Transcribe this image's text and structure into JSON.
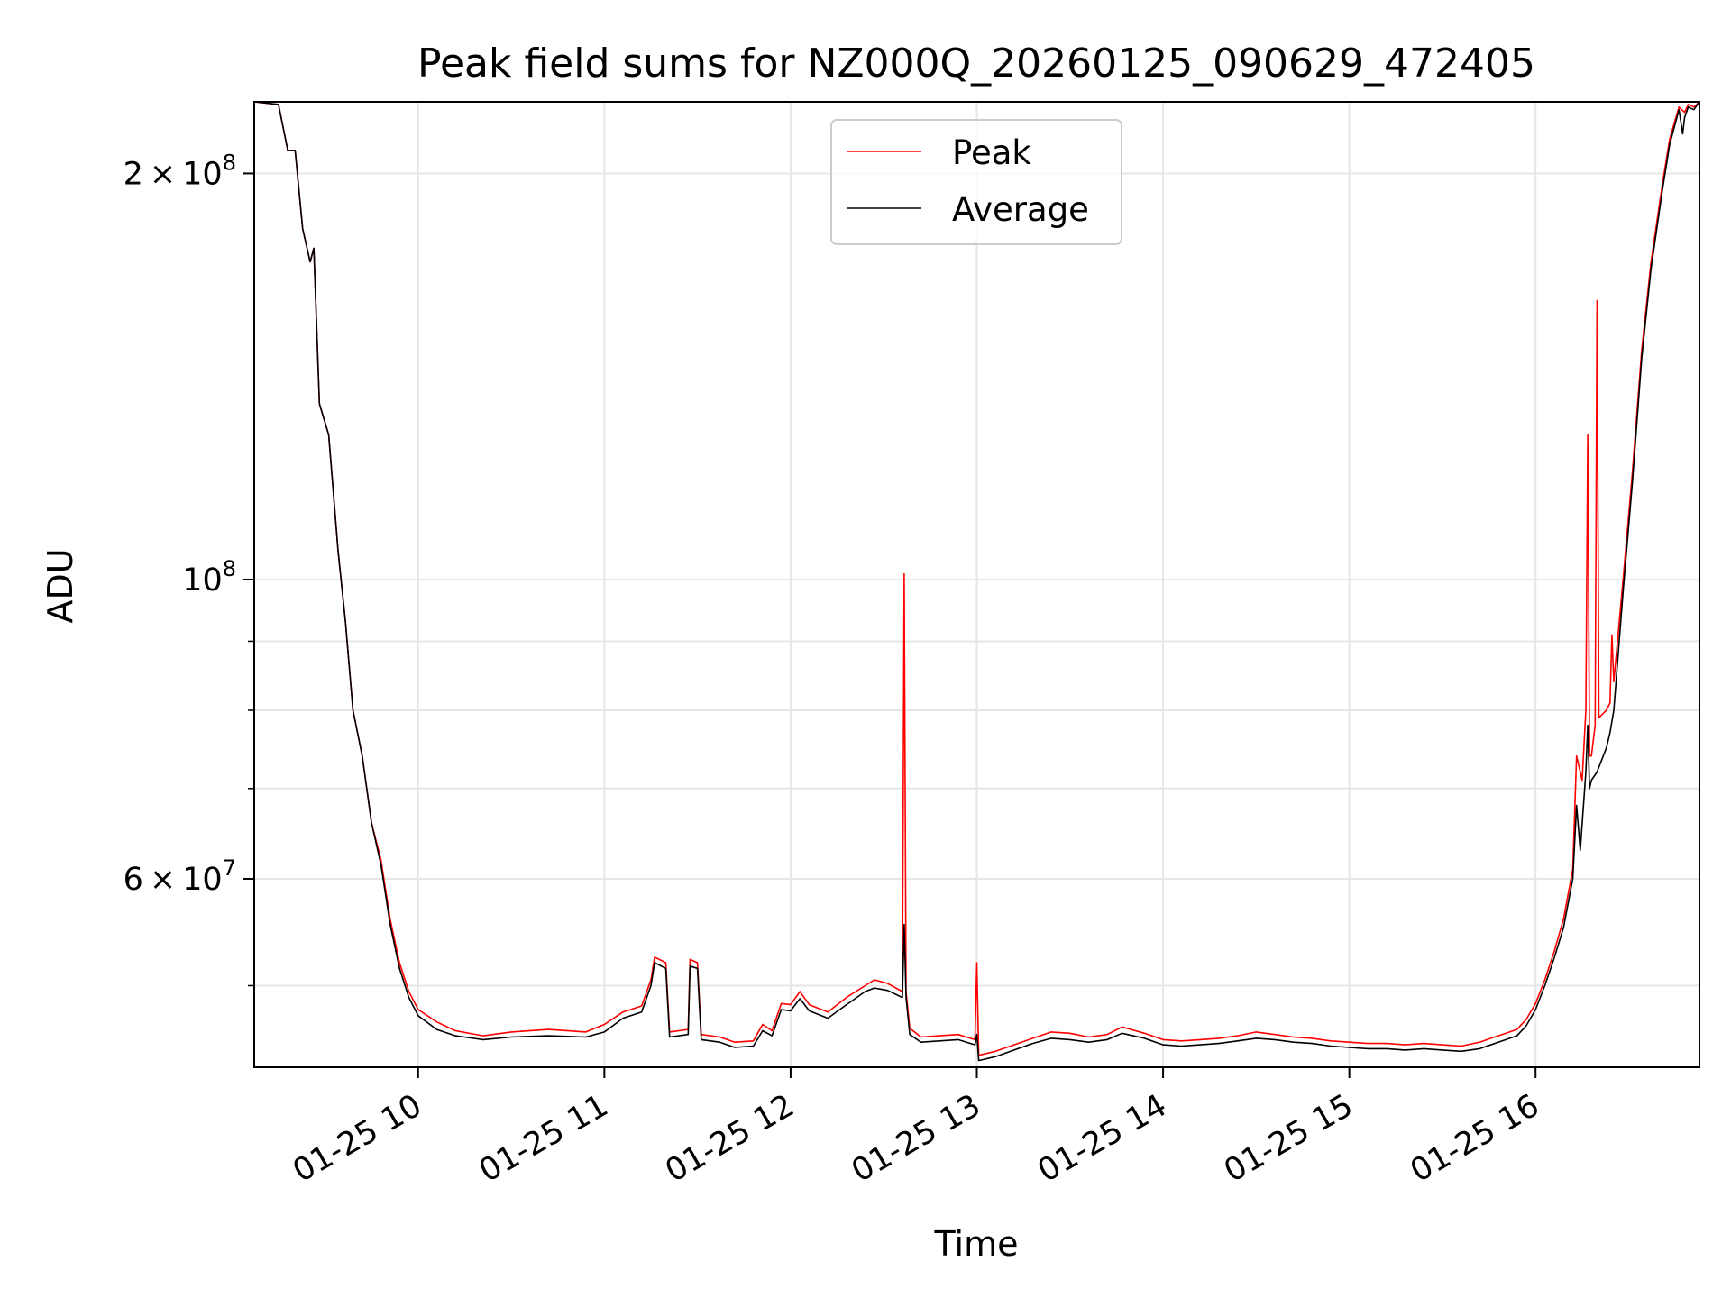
{
  "chart_data": {
    "type": "line",
    "title": "Peak field sums for NZ000Q_20260125_090629_472405",
    "xlabel": "Time",
    "ylabel": "ADU",
    "yscale": "log",
    "ylim": [
      43500000,
      226000000
    ],
    "xlim_hours": [
      9.12,
      16.88
    ],
    "grid": true,
    "legend_position": "upper center",
    "x_ticks": [
      {
        "value": 10,
        "label": "01-25 10"
      },
      {
        "value": 11,
        "label": "01-25 11"
      },
      {
        "value": 12,
        "label": "01-25 12"
      },
      {
        "value": 13,
        "label": "01-25 13"
      },
      {
        "value": 14,
        "label": "01-25 14"
      },
      {
        "value": 15,
        "label": "01-25 15"
      },
      {
        "value": 16,
        "label": "01-25 16"
      }
    ],
    "y_major_ticks": [
      {
        "value": 60000000,
        "mantissa": "6",
        "base": "10",
        "exponent": "7"
      },
      {
        "value": 100000000,
        "mantissa": "",
        "base": "10",
        "exponent": "8"
      },
      {
        "value": 200000000,
        "mantissa": "2",
        "base": "10",
        "exponent": "8"
      }
    ],
    "y_minor_ticks": [
      50000000,
      70000000,
      80000000,
      90000000
    ],
    "series": [
      {
        "name": "Peak",
        "color": "#ff0000",
        "points": [
          [
            9.12,
            226000000
          ],
          [
            9.25,
            225000000
          ],
          [
            9.3,
            208000000
          ],
          [
            9.34,
            208000000
          ],
          [
            9.38,
            182000000
          ],
          [
            9.42,
            172000000
          ],
          [
            9.44,
            176000000
          ],
          [
            9.47,
            135000000
          ],
          [
            9.52,
            128000000
          ],
          [
            9.57,
            105000000
          ],
          [
            9.61,
            93000000
          ],
          [
            9.65,
            80000000
          ],
          [
            9.7,
            74000000
          ],
          [
            9.75,
            66000000
          ],
          [
            9.8,
            62000000
          ],
          [
            9.85,
            56000000
          ],
          [
            9.9,
            52000000
          ],
          [
            9.95,
            49500000
          ],
          [
            10,
            48000000
          ],
          [
            10.1,
            47000000
          ],
          [
            10.2,
            46300000
          ],
          [
            10.35,
            45900000
          ],
          [
            10.5,
            46200000
          ],
          [
            10.7,
            46400000
          ],
          [
            10.9,
            46200000
          ],
          [
            11.0,
            46800000
          ],
          [
            11.1,
            47800000
          ],
          [
            11.2,
            48300000
          ],
          [
            11.25,
            50500000
          ],
          [
            11.27,
            52500000
          ],
          [
            11.33,
            52000000
          ],
          [
            11.35,
            46200000
          ],
          [
            11.45,
            46400000
          ],
          [
            11.46,
            52300000
          ],
          [
            11.5,
            52000000
          ],
          [
            11.52,
            46000000
          ],
          [
            11.62,
            45800000
          ],
          [
            11.7,
            45400000
          ],
          [
            11.8,
            45500000
          ],
          [
            11.85,
            46800000
          ],
          [
            11.9,
            46300000
          ],
          [
            11.95,
            48500000
          ],
          [
            12.0,
            48400000
          ],
          [
            12.05,
            49500000
          ],
          [
            12.1,
            48400000
          ],
          [
            12.2,
            47800000
          ],
          [
            12.3,
            49000000
          ],
          [
            12.4,
            50000000
          ],
          [
            12.45,
            50500000
          ],
          [
            12.52,
            50200000
          ],
          [
            12.6,
            49500000
          ],
          [
            12.61,
            101000000
          ],
          [
            12.62,
            49500000
          ],
          [
            12.64,
            46500000
          ],
          [
            12.7,
            45800000
          ],
          [
            12.8,
            45900000
          ],
          [
            12.9,
            46000000
          ],
          [
            12.99,
            45600000
          ],
          [
            13.0,
            52000000
          ],
          [
            13.01,
            44400000
          ],
          [
            13.1,
            44700000
          ],
          [
            13.2,
            45200000
          ],
          [
            13.3,
            45700000
          ],
          [
            13.4,
            46200000
          ],
          [
            13.5,
            46100000
          ],
          [
            13.6,
            45800000
          ],
          [
            13.7,
            46000000
          ],
          [
            13.78,
            46600000
          ],
          [
            13.9,
            46100000
          ],
          [
            14.0,
            45600000
          ],
          [
            14.1,
            45500000
          ],
          [
            14.2,
            45600000
          ],
          [
            14.3,
            45700000
          ],
          [
            14.4,
            45900000
          ],
          [
            14.5,
            46200000
          ],
          [
            14.6,
            46000000
          ],
          [
            14.7,
            45800000
          ],
          [
            14.8,
            45700000
          ],
          [
            14.9,
            45500000
          ],
          [
            15.0,
            45400000
          ],
          [
            15.1,
            45300000
          ],
          [
            15.2,
            45300000
          ],
          [
            15.3,
            45200000
          ],
          [
            15.4,
            45300000
          ],
          [
            15.5,
            45200000
          ],
          [
            15.6,
            45100000
          ],
          [
            15.7,
            45400000
          ],
          [
            15.8,
            45900000
          ],
          [
            15.9,
            46400000
          ],
          [
            15.95,
            47200000
          ],
          [
            16.0,
            48500000
          ],
          [
            16.05,
            50500000
          ],
          [
            16.1,
            53000000
          ],
          [
            16.15,
            56000000
          ],
          [
            16.2,
            61000000
          ],
          [
            16.22,
            74000000
          ],
          [
            16.25,
            71000000
          ],
          [
            16.27,
            80000000
          ],
          [
            16.28,
            128000000
          ],
          [
            16.29,
            74000000
          ],
          [
            16.3,
            74000000
          ],
          [
            16.32,
            78000000
          ],
          [
            16.33,
            161000000
          ],
          [
            16.34,
            79000000
          ],
          [
            16.38,
            80000000
          ],
          [
            16.4,
            81000000
          ],
          [
            16.41,
            91000000
          ],
          [
            16.42,
            84000000
          ],
          [
            16.47,
            100000000
          ],
          [
            16.52,
            120000000
          ],
          [
            16.57,
            148000000
          ],
          [
            16.62,
            172000000
          ],
          [
            16.68,
            196000000
          ],
          [
            16.72,
            212000000
          ],
          [
            16.77,
            224000000
          ],
          [
            16.8,
            222000000
          ],
          [
            16.82,
            225000000
          ],
          [
            16.85,
            224000000
          ],
          [
            16.88,
            226000000
          ]
        ]
      },
      {
        "name": "Average",
        "color": "#000000",
        "points": [
          [
            9.12,
            226000000
          ],
          [
            9.25,
            225000000
          ],
          [
            9.3,
            208000000
          ],
          [
            9.34,
            208000000
          ],
          [
            9.38,
            182000000
          ],
          [
            9.42,
            172000000
          ],
          [
            9.44,
            176000000
          ],
          [
            9.47,
            135000000
          ],
          [
            9.52,
            128000000
          ],
          [
            9.57,
            105000000
          ],
          [
            9.61,
            93000000
          ],
          [
            9.65,
            80000000
          ],
          [
            9.7,
            74000000
          ],
          [
            9.75,
            66000000
          ],
          [
            9.8,
            61500000
          ],
          [
            9.85,
            55500000
          ],
          [
            9.9,
            51500000
          ],
          [
            9.95,
            49000000
          ],
          [
            10,
            47500000
          ],
          [
            10.1,
            46400000
          ],
          [
            10.2,
            45900000
          ],
          [
            10.35,
            45600000
          ],
          [
            10.5,
            45800000
          ],
          [
            10.7,
            45900000
          ],
          [
            10.9,
            45800000
          ],
          [
            11.0,
            46200000
          ],
          [
            11.1,
            47300000
          ],
          [
            11.2,
            47800000
          ],
          [
            11.25,
            50000000
          ],
          [
            11.27,
            52000000
          ],
          [
            11.33,
            51500000
          ],
          [
            11.35,
            45800000
          ],
          [
            11.45,
            46000000
          ],
          [
            11.46,
            51700000
          ],
          [
            11.5,
            51500000
          ],
          [
            11.52,
            45600000
          ],
          [
            11.62,
            45400000
          ],
          [
            11.7,
            45000000
          ],
          [
            11.8,
            45100000
          ],
          [
            11.85,
            46300000
          ],
          [
            11.9,
            45900000
          ],
          [
            11.95,
            48000000
          ],
          [
            12.0,
            47900000
          ],
          [
            12.05,
            48900000
          ],
          [
            12.1,
            47900000
          ],
          [
            12.2,
            47300000
          ],
          [
            12.3,
            48400000
          ],
          [
            12.4,
            49500000
          ],
          [
            12.45,
            49800000
          ],
          [
            12.52,
            49600000
          ],
          [
            12.6,
            49000000
          ],
          [
            12.61,
            55500000
          ],
          [
            12.62,
            49000000
          ],
          [
            12.64,
            46000000
          ],
          [
            12.7,
            45400000
          ],
          [
            12.8,
            45500000
          ],
          [
            12.9,
            45600000
          ],
          [
            12.99,
            45200000
          ],
          [
            13.0,
            46000000
          ],
          [
            13.01,
            44000000
          ],
          [
            13.1,
            44300000
          ],
          [
            13.2,
            44800000
          ],
          [
            13.3,
            45300000
          ],
          [
            13.4,
            45700000
          ],
          [
            13.5,
            45600000
          ],
          [
            13.6,
            45400000
          ],
          [
            13.7,
            45600000
          ],
          [
            13.78,
            46100000
          ],
          [
            13.9,
            45700000
          ],
          [
            14.0,
            45200000
          ],
          [
            14.1,
            45100000
          ],
          [
            14.2,
            45200000
          ],
          [
            14.3,
            45300000
          ],
          [
            14.4,
            45500000
          ],
          [
            14.5,
            45700000
          ],
          [
            14.6,
            45600000
          ],
          [
            14.7,
            45400000
          ],
          [
            14.8,
            45300000
          ],
          [
            14.9,
            45100000
          ],
          [
            15.0,
            45000000
          ],
          [
            15.1,
            44900000
          ],
          [
            15.2,
            44900000
          ],
          [
            15.3,
            44800000
          ],
          [
            15.4,
            44900000
          ],
          [
            15.5,
            44800000
          ],
          [
            15.6,
            44700000
          ],
          [
            15.7,
            44900000
          ],
          [
            15.8,
            45400000
          ],
          [
            15.9,
            45900000
          ],
          [
            15.95,
            46700000
          ],
          [
            16.0,
            48000000
          ],
          [
            16.05,
            50000000
          ],
          [
            16.1,
            52400000
          ],
          [
            16.15,
            55200000
          ],
          [
            16.2,
            60000000
          ],
          [
            16.22,
            68000000
          ],
          [
            16.24,
            63000000
          ],
          [
            16.27,
            72000000
          ],
          [
            16.28,
            78000000
          ],
          [
            16.29,
            70000000
          ],
          [
            16.3,
            71000000
          ],
          [
            16.33,
            72000000
          ],
          [
            16.38,
            75000000
          ],
          [
            16.4,
            77000000
          ],
          [
            16.42,
            80000000
          ],
          [
            16.47,
            98000000
          ],
          [
            16.52,
            118000000
          ],
          [
            16.57,
            146000000
          ],
          [
            16.62,
            170000000
          ],
          [
            16.68,
            194000000
          ],
          [
            16.72,
            210000000
          ],
          [
            16.77,
            223000000
          ],
          [
            16.79,
            214000000
          ],
          [
            16.8,
            220000000
          ],
          [
            16.82,
            224000000
          ],
          [
            16.85,
            223000000
          ],
          [
            16.88,
            226000000
          ]
        ]
      }
    ]
  }
}
